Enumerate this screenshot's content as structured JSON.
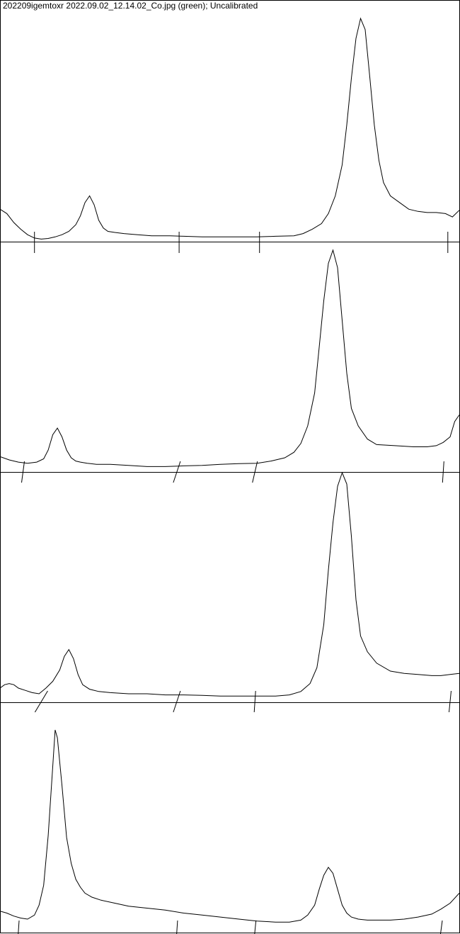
{
  "title": "202209igemtoxr 2022.09.02_12.14.02_Co.jpg (green); Uncalibrated",
  "colors": {
    "line": "#000000",
    "background": "#ffffff"
  },
  "chart_data": [
    {
      "type": "line",
      "lane": 1,
      "x": [
        0,
        1.5,
        3,
        4.5,
        6,
        7.5,
        9,
        10.5,
        12,
        13.5,
        15,
        16.5,
        17.5,
        18.5,
        19.5,
        20.5,
        21.5,
        22.5,
        23.5,
        25,
        27,
        30,
        33,
        37,
        40,
        44,
        48,
        52,
        56,
        60,
        64,
        66,
        68,
        70,
        71.5,
        73,
        74.5,
        75.5,
        76.5,
        77.5,
        78.5,
        79.5,
        80.5,
        81.5,
        82.5,
        83.5,
        85,
        87,
        89,
        91,
        93,
        95,
        97,
        98.5,
        100
      ],
      "y": [
        14.0,
        12.0,
        8.0,
        5.0,
        2.5,
        1.0,
        0.5,
        0.8,
        1.5,
        2.5,
        4.0,
        7.0,
        11.0,
        17.0,
        20.0,
        16.0,
        9.0,
        5.5,
        4.0,
        3.5,
        3.0,
        2.5,
        2.0,
        2.0,
        1.8,
        1.5,
        1.5,
        1.5,
        1.5,
        1.8,
        2.0,
        3.0,
        5.0,
        7.5,
        12.0,
        20.0,
        34.0,
        52.0,
        73.0,
        91.0,
        100.0,
        95.0,
        74.0,
        52.0,
        36.0,
        26.0,
        20.0,
        17.0,
        14.0,
        13.0,
        12.5,
        12.5,
        12.0,
        10.5,
        13.5
      ],
      "baseline_marks": [
        7.5,
        39,
        56.5,
        97.5
      ]
    },
    {
      "type": "line",
      "lane": 2,
      "x": [
        0,
        2,
        4,
        6,
        8,
        9.5,
        10.5,
        11.5,
        12.5,
        13.5,
        14.5,
        15.5,
        16.5,
        17.5,
        19,
        21,
        24,
        28,
        32,
        36,
        40,
        44,
        48,
        52,
        56,
        59,
        62,
        64,
        65.5,
        67,
        68.5,
        69.5,
        70.5,
        71.5,
        72.5,
        73.5,
        74.5,
        75.5,
        76.5,
        78,
        80,
        82,
        86,
        90,
        93,
        95,
        96.5,
        98,
        99,
        100
      ],
      "y": [
        6.0,
        4.5,
        3.5,
        3.0,
        3.5,
        5.0,
        9.0,
        16.0,
        19.0,
        15.0,
        9.0,
        5.5,
        4.0,
        3.5,
        3.0,
        2.5,
        2.5,
        2.0,
        1.5,
        1.5,
        1.8,
        2.0,
        2.5,
        2.8,
        3.0,
        4.0,
        5.5,
        8.0,
        12.0,
        20.0,
        35.0,
        56.0,
        77.0,
        94.0,
        100.0,
        92.0,
        68.0,
        44.0,
        28.0,
        20.0,
        14.0,
        11.5,
        11.0,
        10.5,
        10.5,
        11.0,
        12.5,
        15.0,
        22.0,
        25.0
      ],
      "baseline_marks": [
        5,
        38.5,
        55.5,
        96.5
      ]
    },
    {
      "type": "line",
      "lane": 3,
      "x": [
        0,
        1,
        2,
        3,
        4,
        5.5,
        7,
        8.5,
        10,
        11.5,
        13,
        14,
        15,
        16,
        17,
        18,
        19.5,
        21.5,
        24,
        28,
        32,
        36,
        40,
        44,
        48,
        52,
        56,
        60,
        63,
        65.5,
        67.5,
        69,
        70.5,
        71.5,
        72.5,
        73.5,
        74.5,
        75.5,
        76.5,
        77.5,
        78.5,
        80,
        82,
        85,
        88,
        91,
        94,
        96,
        98,
        100
      ],
      "y": [
        5.0,
        6.5,
        7.0,
        6.5,
        5.0,
        4.0,
        3.0,
        2.5,
        5.0,
        8.0,
        13.0,
        19.0,
        22.0,
        18.0,
        11.0,
        6.5,
        4.5,
        3.5,
        3.0,
        2.5,
        2.5,
        2.0,
        2.0,
        1.8,
        1.5,
        1.5,
        1.5,
        1.5,
        2.0,
        3.5,
        7.0,
        14.0,
        33.0,
        57.0,
        78.0,
        94.0,
        100.0,
        95.0,
        72.0,
        44.0,
        28.0,
        21.0,
        16.0,
        12.5,
        11.5,
        11.0,
        10.5,
        10.5,
        11.0,
        11.5
      ],
      "baseline_marks": [
        9,
        38.5,
        55.5,
        98
      ]
    },
    {
      "type": "line",
      "lane": 4,
      "x": [
        0,
        1.5,
        3,
        4.5,
        6,
        7.5,
        8.5,
        9.5,
        10.5,
        11.5,
        12,
        12.5,
        13.5,
        14.5,
        15.5,
        16.5,
        17.5,
        18.5,
        20,
        22,
        25,
        28,
        32,
        36,
        40,
        44,
        48,
        52,
        56,
        60,
        63,
        65.5,
        67,
        68.5,
        69.5,
        70.5,
        71.5,
        72.5,
        73.5,
        74.5,
        75.5,
        76.5,
        78,
        80,
        82,
        85,
        88,
        91,
        94,
        96,
        98,
        100
      ],
      "y": [
        9.0,
        8.0,
        6.5,
        5.5,
        5.0,
        7.0,
        12.0,
        22.0,
        47.0,
        82.0,
        100.0,
        96.0,
        72.0,
        46.0,
        33.0,
        25.0,
        21.0,
        18.0,
        16.0,
        14.5,
        13.0,
        11.5,
        10.5,
        9.5,
        8.0,
        7.0,
        6.0,
        5.0,
        4.0,
        3.5,
        3.5,
        4.5,
        7.0,
        12.0,
        20.0,
        27.0,
        31.0,
        28.0,
        20.0,
        12.0,
        8.0,
        6.0,
        5.0,
        4.5,
        4.5,
        4.5,
        5.0,
        6.0,
        7.5,
        10.0,
        13.0,
        18.0
      ],
      "baseline_marks": [
        4,
        38.5,
        55.5,
        96
      ]
    }
  ]
}
